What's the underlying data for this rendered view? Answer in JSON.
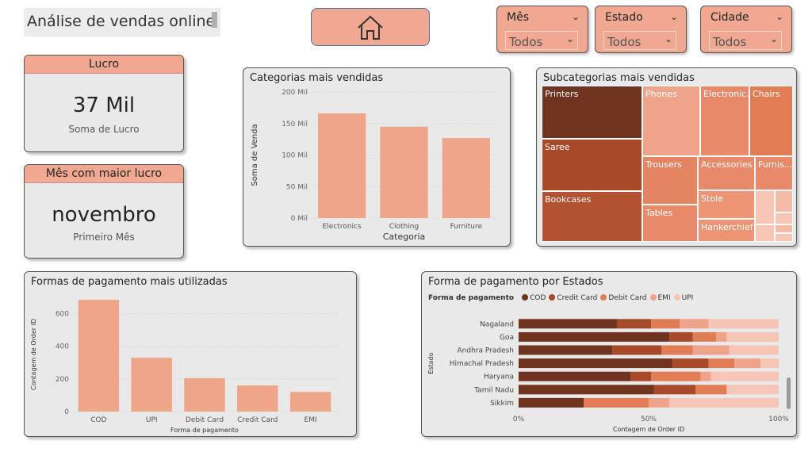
{
  "header": {
    "title": "Análise de vendas online"
  },
  "home": {
    "icon": "home-icon"
  },
  "slicers": [
    {
      "label": "Mês",
      "value": "Todos"
    },
    {
      "label": "Estado",
      "value": "Todos"
    },
    {
      "label": "Cidade",
      "value": "Todos"
    }
  ],
  "kpis": {
    "profit": {
      "title": "Lucro",
      "value": "37 Mil",
      "subtitle": "Soma de Lucro"
    },
    "best_month": {
      "title": "Mês com maior lucro",
      "value": "novembro",
      "subtitle": "Primeiro Mês"
    }
  },
  "colors": {
    "accent": "#f0a890",
    "bar": "#efa58a",
    "cod": "#6f3320",
    "credit_card": "#a74a2a",
    "debit_card": "#e07d55",
    "emi": "#f0a38b",
    "upi": "#f6c5b5"
  },
  "chart_data": [
    {
      "id": "categories",
      "type": "bar",
      "title": "Categorias mais vendidas",
      "xlabel": "Categoria",
      "ylabel": "Soma de Venda",
      "categories": [
        "Electronics",
        "Clothing",
        "Furniture"
      ],
      "values": [
        166,
        145,
        127
      ],
      "ylim": [
        0,
        200
      ],
      "yticks": [
        "0 Mil",
        "50 Mil",
        "100 Mil",
        "150 Mil",
        "200 Mil"
      ],
      "grid": true
    },
    {
      "id": "subcategories",
      "type": "treemap",
      "title": "Subcategorias mais vendidas",
      "labels": [
        "Printers",
        "Saree",
        "Bookcases",
        "Phones",
        "Electronic...",
        "Chairs",
        "Trousers",
        "Accessories",
        "Furnis...",
        "Tables",
        "Stole",
        "Hankerchief"
      ]
    },
    {
      "id": "payments",
      "type": "bar",
      "title": "Formas de pagamento mais utilizadas",
      "xlabel": "Forma de pagamento",
      "ylabel": "Contagem de Order ID",
      "categories": [
        "COD",
        "UPI",
        "Debit Card",
        "Credit Card",
        "EMI"
      ],
      "values": [
        685,
        330,
        205,
        160,
        120
      ],
      "ylim": [
        0,
        700
      ],
      "yticks": [
        "0",
        "200",
        "400",
        "600"
      ],
      "grid": true
    },
    {
      "id": "payment_by_state",
      "type": "bar",
      "stacked": "100%",
      "orientation": "horizontal",
      "title": "Forma de pagamento por Estados",
      "legend_title": "Forma de pagamento",
      "legend_position": "top-left",
      "ylabel": "Estado",
      "xlabel": "Contagem de Order ID",
      "xticks": [
        "0%",
        "50%",
        "100%"
      ],
      "categories": [
        "Nagaland",
        "Goa",
        "Andhra Pradesh",
        "Himachal Pradesh",
        "Haryana",
        "Tamil Nadu",
        "Sikkim"
      ],
      "series": [
        {
          "name": "COD",
          "values": [
            38,
            58,
            36,
            59,
            43,
            52,
            25
          ]
        },
        {
          "name": "Credit Card",
          "values": [
            13,
            9,
            19,
            14,
            8,
            16,
            0
          ]
        },
        {
          "name": "Debit Card",
          "values": [
            11,
            9,
            12,
            10,
            19,
            12,
            25
          ]
        },
        {
          "name": "EMI",
          "values": [
            11,
            4,
            14,
            10,
            4,
            0,
            8
          ]
        },
        {
          "name": "UPI",
          "values": [
            27,
            20,
            19,
            7,
            26,
            20,
            42
          ]
        }
      ]
    }
  ]
}
